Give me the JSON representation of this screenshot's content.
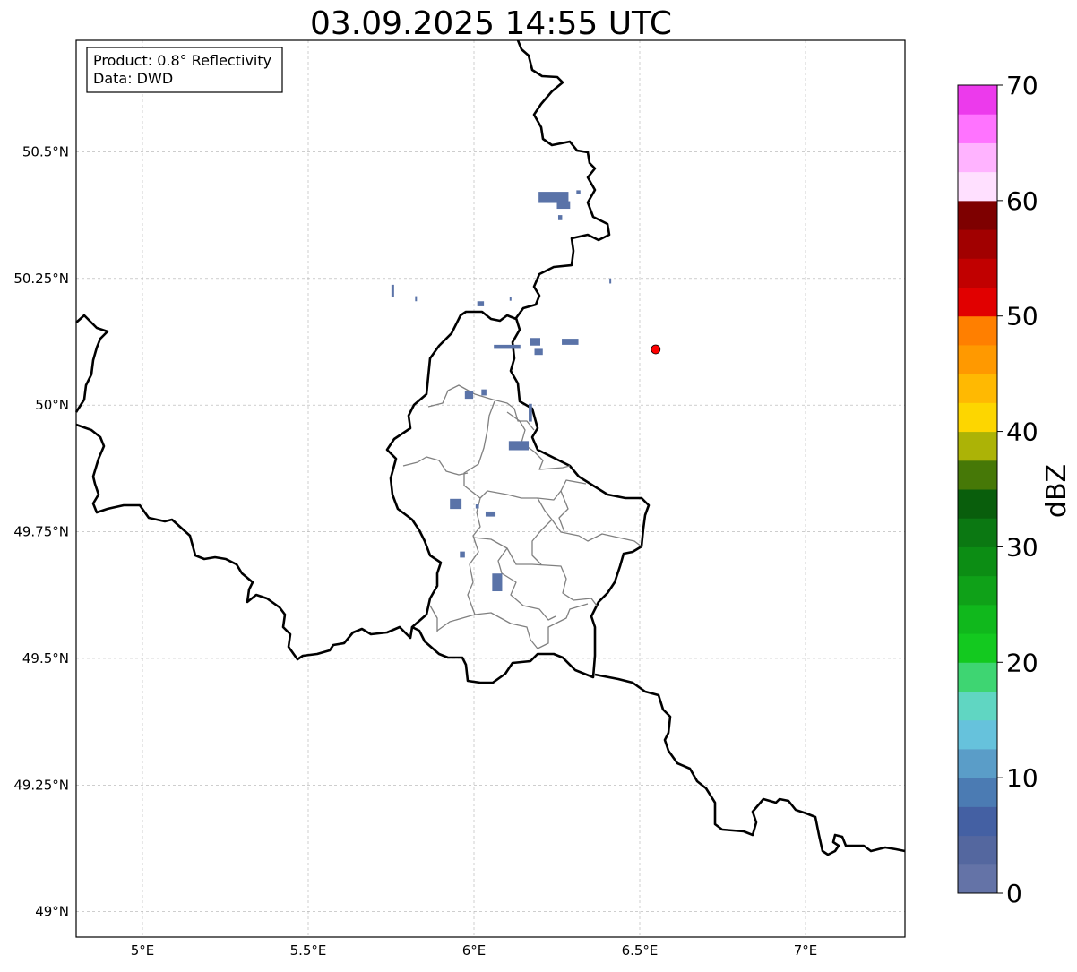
{
  "title": "03.09.2025 14:55 UTC",
  "info_box": {
    "product_line": "Product: 0.8° Reflectivity",
    "data_line": "Data: DWD"
  },
  "map": {
    "lon_range": [
      4.8,
      7.3
    ],
    "lat_range": [
      48.95,
      50.72
    ],
    "grid": true,
    "x_ticks": [
      {
        "value": 5.0,
        "label": "5°E"
      },
      {
        "value": 5.5,
        "label": "5.5°E"
      },
      {
        "value": 6.0,
        "label": "6°E"
      },
      {
        "value": 6.5,
        "label": "6.5°E"
      },
      {
        "value": 7.0,
        "label": "7°E"
      }
    ],
    "y_ticks": [
      {
        "value": 50.5,
        "label": "50.5°N"
      },
      {
        "value": 50.25,
        "label": "50.25°N"
      },
      {
        "value": 50.0,
        "label": "50°N"
      },
      {
        "value": 49.75,
        "label": "49.75°N"
      },
      {
        "value": 49.5,
        "label": "49.5°N"
      },
      {
        "value": 49.25,
        "label": "49.25°N"
      },
      {
        "value": 49.0,
        "label": "49°N"
      }
    ],
    "radar_site": {
      "lon": 6.548,
      "lat": 50.11,
      "color": "#ff0000"
    },
    "echo_color": "#5a73a8",
    "echo_cells": [
      {
        "lon": 6.24,
        "lat": 50.41,
        "dlon": 0.09,
        "dlat": 0.022
      },
      {
        "lon": 6.27,
        "lat": 50.395,
        "dlon": 0.04,
        "dlat": 0.015
      },
      {
        "lon": 6.26,
        "lat": 50.37,
        "dlon": 0.012,
        "dlat": 0.01
      },
      {
        "lon": 6.315,
        "lat": 50.42,
        "dlon": 0.012,
        "dlat": 0.008
      },
      {
        "lon": 5.755,
        "lat": 50.225,
        "dlon": 0.008,
        "dlat": 0.025
      },
      {
        "lon": 5.825,
        "lat": 50.21,
        "dlon": 0.005,
        "dlat": 0.01
      },
      {
        "lon": 6.02,
        "lat": 50.2,
        "dlon": 0.02,
        "dlat": 0.01
      },
      {
        "lon": 6.11,
        "lat": 50.21,
        "dlon": 0.005,
        "dlat": 0.008
      },
      {
        "lon": 6.185,
        "lat": 50.125,
        "dlon": 0.03,
        "dlat": 0.015
      },
      {
        "lon": 6.195,
        "lat": 50.105,
        "dlon": 0.025,
        "dlat": 0.012
      },
      {
        "lon": 6.1,
        "lat": 50.115,
        "dlon": 0.08,
        "dlat": 0.008
      },
      {
        "lon": 6.29,
        "lat": 50.125,
        "dlon": 0.05,
        "dlat": 0.012
      },
      {
        "lon": 6.41,
        "lat": 50.245,
        "dlon": 0.003,
        "dlat": 0.01
      },
      {
        "lon": 5.985,
        "lat": 50.02,
        "dlon": 0.025,
        "dlat": 0.015
      },
      {
        "lon": 6.03,
        "lat": 50.025,
        "dlon": 0.015,
        "dlat": 0.012
      },
      {
        "lon": 6.17,
        "lat": 49.985,
        "dlon": 0.01,
        "dlat": 0.035
      },
      {
        "lon": 6.135,
        "lat": 49.92,
        "dlon": 0.06,
        "dlat": 0.018
      },
      {
        "lon": 5.945,
        "lat": 49.805,
        "dlon": 0.035,
        "dlat": 0.02
      },
      {
        "lon": 6.05,
        "lat": 49.785,
        "dlon": 0.03,
        "dlat": 0.01
      },
      {
        "lon": 6.01,
        "lat": 49.8,
        "dlon": 0.01,
        "dlat": 0.008
      },
      {
        "lon": 5.965,
        "lat": 49.705,
        "dlon": 0.015,
        "dlat": 0.012
      },
      {
        "lon": 6.07,
        "lat": 49.65,
        "dlon": 0.03,
        "dlat": 0.035
      }
    ]
  },
  "colorbar": {
    "label": "dBZ",
    "min": 0,
    "max": 70,
    "tick_values": [
      0,
      10,
      20,
      30,
      40,
      50,
      60,
      70
    ],
    "tick_labels": [
      "0",
      "10",
      "20",
      "30",
      "40",
      "50",
      "60",
      "70"
    ],
    "colors": [
      "#6473a7",
      "#54679f",
      "#4460a3",
      "#4b7bb3",
      "#5a9dc8",
      "#66c2dc",
      "#60d6c2",
      "#3ed572",
      "#13c91f",
      "#10b81c",
      "#0fa118",
      "#0c8d14",
      "#0b7812",
      "#095e0c",
      "#467807",
      "#acb306",
      "#fdd600",
      "#ffb902",
      "#ff9900",
      "#ff7f00",
      "#e10000",
      "#c10000",
      "#a10000",
      "#7e0000",
      "#ffe0ff",
      "#ffb3ff",
      "#ff73ff",
      "#ec3aec"
    ]
  }
}
